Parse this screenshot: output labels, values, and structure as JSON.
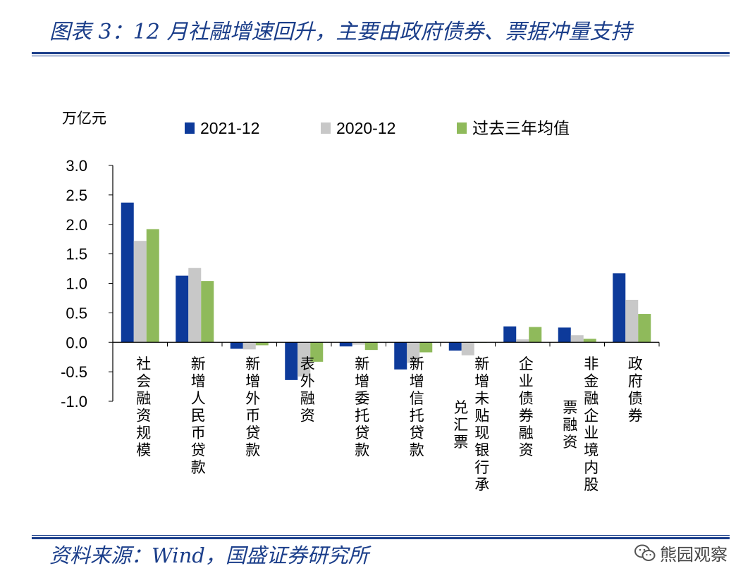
{
  "header": {
    "title": "图表 3：12 月社融增速回升，主要由政府债券、票据冲量支持"
  },
  "footer": {
    "source": "资料来源：Wind，国盛证券研究所",
    "watermark": "熊园观察"
  },
  "chart_data": {
    "type": "bar",
    "unit_label": "万亿元",
    "categories": [
      "社会融资规模",
      "新增人民币贷款",
      "新增外币贷款",
      "表外融资",
      "新增委托贷款",
      "新增信托贷款",
      "新增未贴现银行承兑汇票",
      "企业债券融资",
      "非金融企业境内股票融资",
      "政府债券"
    ],
    "category_label_columns": [
      [
        "社会融资规模"
      ],
      [
        "新增人民币贷款"
      ],
      [
        "新增外币贷款"
      ],
      [
        "表外融资"
      ],
      [
        "新增委托贷款"
      ],
      [
        "新增信托贷款"
      ],
      [
        "新增未贴现银行承",
        "兑汇票"
      ],
      [
        "企业债券融资"
      ],
      [
        "非金融企业境内股",
        "票融资"
      ],
      [
        "政府债券"
      ]
    ],
    "series": [
      {
        "name": "2021-12",
        "color": "#0d3a9a",
        "values": [
          2.37,
          1.13,
          -0.11,
          -0.64,
          -0.07,
          -0.46,
          -0.14,
          0.27,
          0.25,
          1.17
        ]
      },
      {
        "name": "2020-12",
        "color": "#c8c8c8",
        "values": [
          1.72,
          1.26,
          -0.12,
          -0.58,
          -0.04,
          -0.35,
          -0.22,
          0.05,
          0.12,
          0.72
        ]
      },
      {
        "name": "过去三年均值",
        "color": "#8fba5b",
        "values": [
          1.92,
          1.04,
          -0.05,
          -0.33,
          -0.13,
          -0.17,
          0.0,
          0.26,
          0.06,
          0.48
        ]
      }
    ],
    "ylim": [
      -1.0,
      3.0
    ],
    "yticks": [
      "3.0",
      "2.5",
      "2.0",
      "1.5",
      "1.0",
      "0.5",
      "0.0",
      "-0.5",
      "-1.0"
    ],
    "legend_position": "top",
    "grid": false
  }
}
